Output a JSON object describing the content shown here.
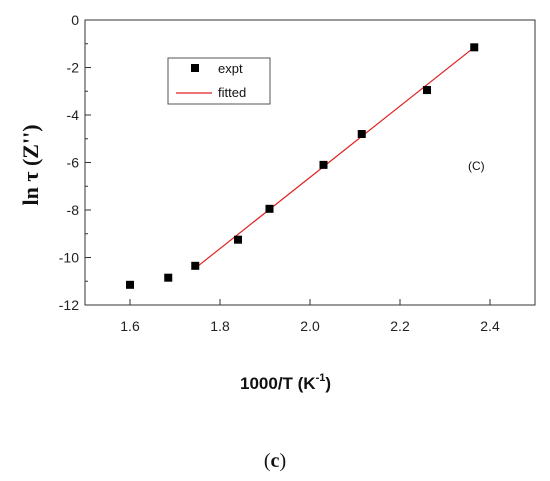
{
  "chart_data": {
    "type": "scatter",
    "xlabel_main": "1000/T  (K",
    "xlabel_sup": "-1",
    "xlabel_close": ")",
    "ylabel": "ln τ (Z'')",
    "xlim": [
      1.5,
      2.5
    ],
    "ylim": [
      -12,
      0
    ],
    "x_ticks": [
      1.6,
      1.8,
      2.0,
      2.2,
      2.4
    ],
    "x_tick_labels": [
      "1.6",
      "1.8",
      "2.0",
      "2.2",
      "2.4"
    ],
    "y_ticks": [
      0,
      -2,
      -4,
      -6,
      -8,
      -10,
      -12
    ],
    "y_tick_labels": [
      "0",
      "-2",
      "-4",
      "-6",
      "-8",
      "-10",
      "-12"
    ],
    "grid": false,
    "legend_position": "top-left",
    "series": [
      {
        "name": "expt",
        "marker": "square",
        "color": "#000000",
        "x": [
          1.6,
          1.685,
          1.745,
          1.84,
          1.91,
          2.03,
          2.115,
          2.26,
          2.365
        ],
        "y": [
          -11.15,
          -10.85,
          -10.35,
          -9.25,
          -7.95,
          -6.1,
          -4.8,
          -2.95,
          -1.15
        ]
      },
      {
        "name": "fitted",
        "line": true,
        "color": "#e02020",
        "x": [
          1.745,
          2.365
        ],
        "y": [
          -10.45,
          -1.15
        ]
      }
    ],
    "annotations": [
      "(C)"
    ]
  },
  "caption": {
    "open": "(",
    "letter": "c",
    "close": ")"
  }
}
